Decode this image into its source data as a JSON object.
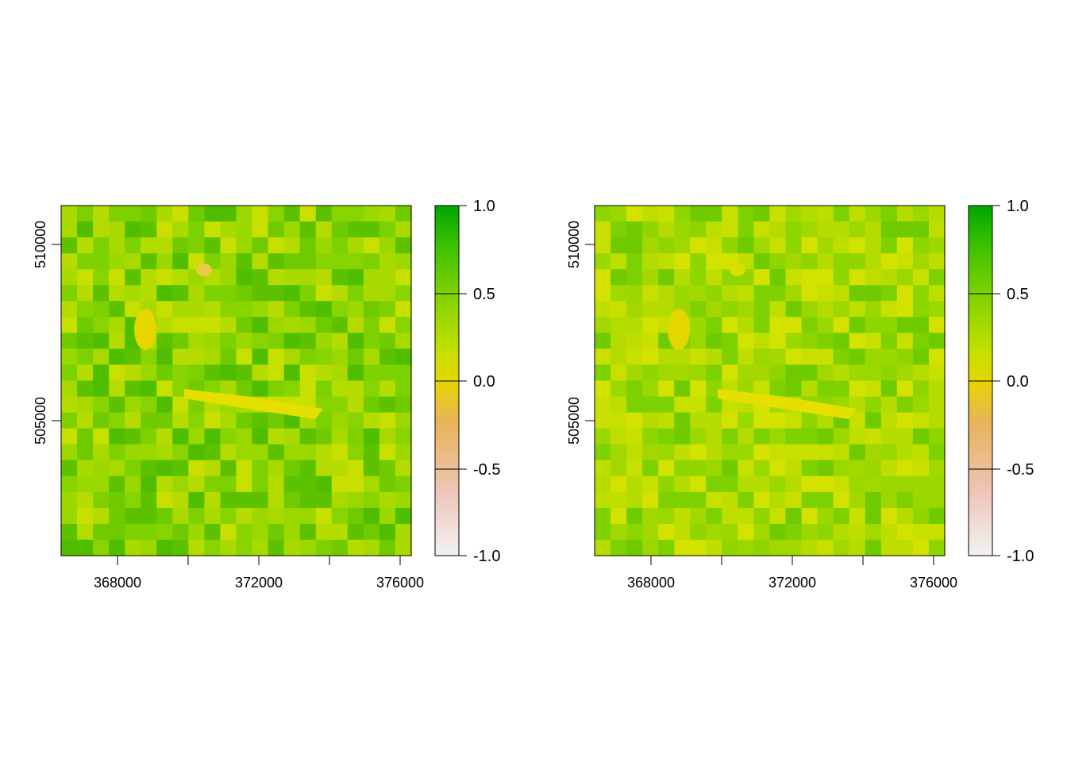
{
  "panels": [
    {
      "x_ticks": [
        "368000",
        "372000",
        "376000"
      ],
      "y_ticks": [
        "505000",
        "510000"
      ],
      "legend_labels": [
        "1.0",
        "0.5",
        "0.0",
        "-0.5",
        "-1.0"
      ],
      "zlim": [
        -1.0,
        1.0
      ]
    },
    {
      "x_ticks": [
        "368000",
        "372000",
        "376000"
      ],
      "y_ticks": [
        "505000",
        "510000"
      ],
      "legend_labels": [
        "1.0",
        "0.5",
        "0.0",
        "-0.5",
        "-1.0"
      ],
      "zlim": [
        -1.0,
        1.0
      ]
    }
  ],
  "colors": {
    "ramp": [
      "#F2F2F2",
      "#EDC6B8",
      "#E9B35A",
      "#E6D600",
      "#C6E000",
      "#7DD100",
      "#3EC200",
      "#00A600"
    ],
    "map_low": "#E8E400",
    "map_mid": "#C0DE00",
    "map_high": "#5CC200"
  },
  "extent": {
    "x": [
      366400,
      376400
    ],
    "y": [
      500200,
      510900
    ]
  }
}
